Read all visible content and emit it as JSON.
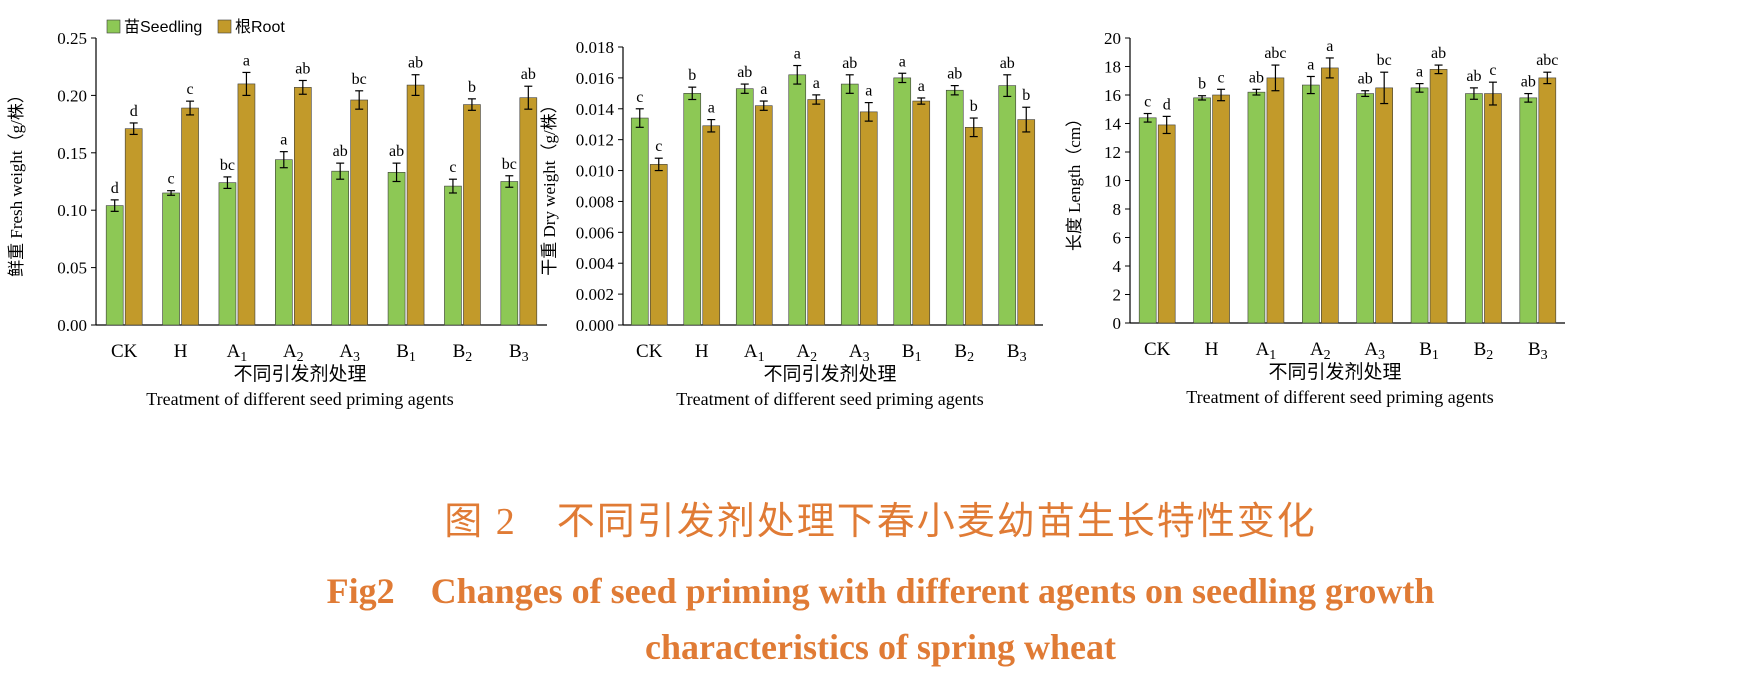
{
  "legend": {
    "seedling": "苗Seedling",
    "root": "根Root"
  },
  "colors": {
    "seedling": "#8dc855",
    "root": "#c29a2a",
    "caption": "#e07b35"
  },
  "caption": {
    "cn": "图 2　不同引发剂处理下春小麦幼苗生长特性变化",
    "en_line1": "Fig2　Changes of seed priming with different agents on seedling growth",
    "en_line2": "characteristics of spring wheat"
  },
  "chart_data": [
    {
      "type": "bar",
      "categories": [
        "CK",
        "H",
        "A1",
        "A2",
        "A3",
        "B1",
        "B2",
        "B3"
      ],
      "category_labels": [
        {
          "base": "CK",
          "sub": ""
        },
        {
          "base": "H",
          "sub": ""
        },
        {
          "base": "A",
          "sub": "1"
        },
        {
          "base": "A",
          "sub": "2"
        },
        {
          "base": "A",
          "sub": "3"
        },
        {
          "base": "B",
          "sub": "1"
        },
        {
          "base": "B",
          "sub": "2"
        },
        {
          "base": "B",
          "sub": "3"
        }
      ],
      "ylabel": "鲜重 Fresh weight（g/株）",
      "xlabel_cn": "不同引发剂处理",
      "xlabel_en": "Treatment of different seed priming agents",
      "ylim": [
        0,
        0.25
      ],
      "yticks": [
        "0.00",
        "0.05",
        "0.10",
        "0.15",
        "0.20",
        "0.25"
      ],
      "legend": "top-left",
      "series": [
        {
          "name": "苗Seedling",
          "values": [
            0.104,
            0.115,
            0.124,
            0.144,
            0.134,
            0.133,
            0.121,
            0.125
          ],
          "errors": [
            0.005,
            0.002,
            0.005,
            0.007,
            0.007,
            0.008,
            0.006,
            0.005
          ],
          "letters": [
            "d",
            "c",
            "bc",
            "a",
            "ab",
            "ab",
            "c",
            "bc"
          ]
        },
        {
          "name": "根Root",
          "values": [
            0.171,
            0.189,
            0.21,
            0.207,
            0.196,
            0.209,
            0.192,
            0.198
          ],
          "errors": [
            0.005,
            0.006,
            0.01,
            0.006,
            0.008,
            0.009,
            0.005,
            0.01
          ],
          "letters": [
            "d",
            "c",
            "a",
            "ab",
            "bc",
            "ab",
            "b",
            "ab"
          ]
        }
      ]
    },
    {
      "type": "bar",
      "categories": [
        "CK",
        "H",
        "A1",
        "A2",
        "A3",
        "B1",
        "B2",
        "B3"
      ],
      "category_labels": [
        {
          "base": "CK",
          "sub": ""
        },
        {
          "base": "H",
          "sub": ""
        },
        {
          "base": "A",
          "sub": "1"
        },
        {
          "base": "A",
          "sub": "2"
        },
        {
          "base": "A",
          "sub": "3"
        },
        {
          "base": "B",
          "sub": "1"
        },
        {
          "base": "B",
          "sub": "2"
        },
        {
          "base": "B",
          "sub": "3"
        }
      ],
      "ylabel": "干重 Dry weight（g/株）",
      "xlabel_cn": "不同引发剂处理",
      "xlabel_en": "Treatment of different seed priming agents",
      "ylim": [
        0,
        0.018
      ],
      "yticks": [
        "0.000",
        "0.002",
        "0.004",
        "0.006",
        "0.008",
        "0.010",
        "0.012",
        "0.014",
        "0.016",
        "0.018"
      ],
      "series": [
        {
          "name": "苗Seedling",
          "values": [
            0.0134,
            0.015,
            0.0153,
            0.0162,
            0.0156,
            0.016,
            0.0152,
            0.0155
          ],
          "errors": [
            0.0006,
            0.0004,
            0.0003,
            0.0006,
            0.0006,
            0.0003,
            0.0003,
            0.0007
          ],
          "letters": [
            "c",
            "b",
            "ab",
            "a",
            "ab",
            "a",
            "ab",
            "ab"
          ]
        },
        {
          "name": "根Root",
          "values": [
            0.0104,
            0.0129,
            0.0142,
            0.0146,
            0.0138,
            0.0145,
            0.0128,
            0.0133
          ],
          "errors": [
            0.0004,
            0.0004,
            0.0003,
            0.0003,
            0.0006,
            0.0002,
            0.0006,
            0.0008
          ],
          "letters": [
            "c",
            "a",
            "a",
            "a",
            "a",
            "a",
            "b",
            "b"
          ]
        }
      ]
    },
    {
      "type": "bar",
      "categories": [
        "CK",
        "H",
        "A1",
        "A2",
        "A3",
        "B1",
        "B2",
        "B3"
      ],
      "category_labels": [
        {
          "base": "CK",
          "sub": ""
        },
        {
          "base": "H",
          "sub": ""
        },
        {
          "base": "A",
          "sub": "1"
        },
        {
          "base": "A",
          "sub": "2"
        },
        {
          "base": "A",
          "sub": "3"
        },
        {
          "base": "B",
          "sub": "1"
        },
        {
          "base": "B",
          "sub": "2"
        },
        {
          "base": "B",
          "sub": "3"
        }
      ],
      "ylabel": "长度 Length（cm）",
      "xlabel_cn": "不同引发剂处理",
      "xlabel_en": "Treatment of different seed priming agents",
      "ylim": [
        0,
        20
      ],
      "yticks": [
        "0",
        "2",
        "4",
        "6",
        "8",
        "10",
        "12",
        "14",
        "16",
        "18",
        "20"
      ],
      "series": [
        {
          "name": "苗Seedling",
          "values": [
            14.4,
            15.8,
            16.2,
            16.7,
            16.1,
            16.5,
            16.1,
            15.8
          ],
          "errors": [
            0.3,
            0.15,
            0.2,
            0.6,
            0.2,
            0.3,
            0.4,
            0.3
          ],
          "letters": [
            "c",
            "b",
            "ab",
            "a",
            "ab",
            "a",
            "ab",
            "ab"
          ]
        },
        {
          "name": "根Root",
          "values": [
            13.9,
            16.0,
            17.2,
            17.9,
            16.5,
            17.8,
            16.1,
            17.2
          ],
          "errors": [
            0.6,
            0.4,
            0.9,
            0.7,
            1.1,
            0.3,
            0.8,
            0.4
          ],
          "letters": [
            "d",
            "c",
            "abc",
            "a",
            "bc",
            "ab",
            "c",
            "abc"
          ]
        }
      ]
    }
  ]
}
